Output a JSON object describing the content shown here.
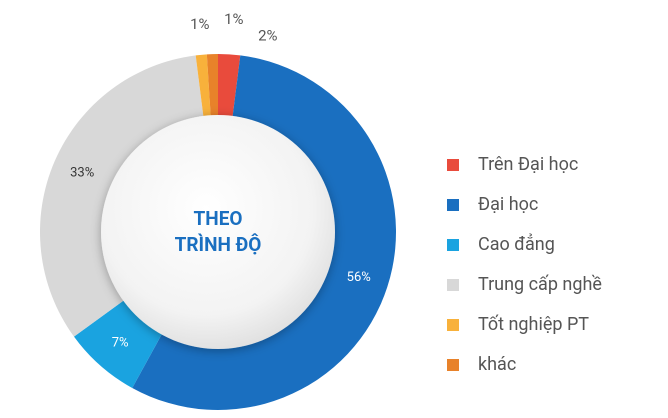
{
  "chart_data": {
    "type": "donut",
    "center_text": [
      "THEO",
      "TRÌNH ĐỘ"
    ],
    "categories": [
      "Trên Đại học",
      "Đại học",
      "Cao đẳng",
      "Trung cấp nghề",
      "Tốt nghiệp PT",
      "khác"
    ],
    "values": [
      2,
      56,
      7,
      33,
      1,
      1
    ],
    "value_labels": [
      "2%",
      "56%",
      "7%",
      "33%",
      "1%",
      "1%"
    ],
    "colors": [
      "#e94b3c",
      "#1a6fc0",
      "#1aa3e0",
      "#d8d8d8",
      "#f8b13b",
      "#e8822a"
    ],
    "legend": "right"
  }
}
